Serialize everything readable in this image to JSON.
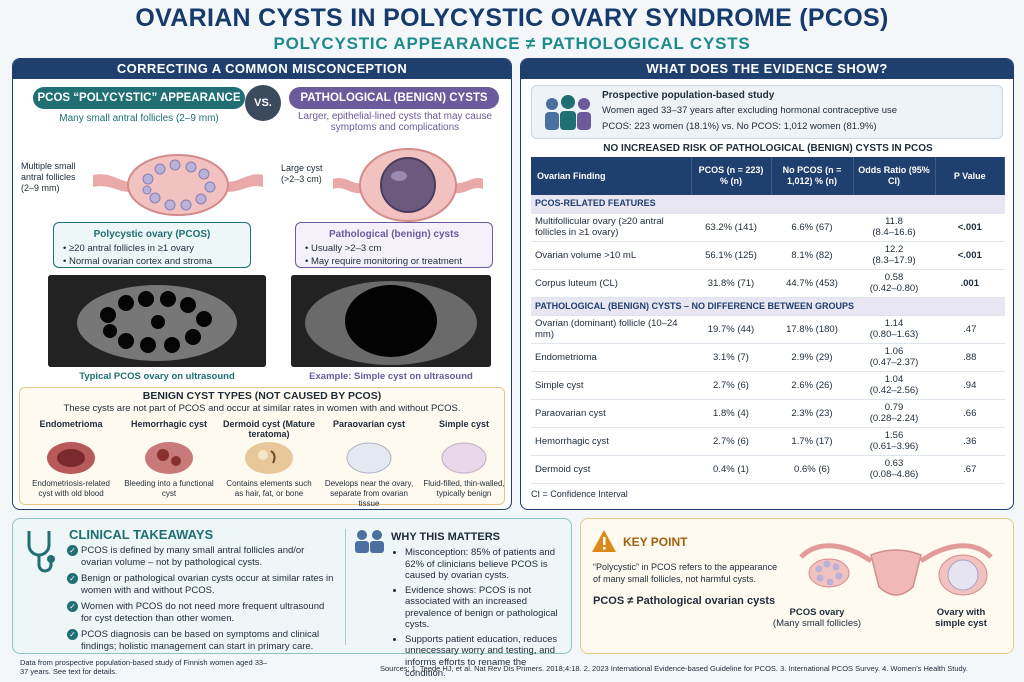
{
  "title": "OVARIAN CYSTS IN POLYCYSTIC OVARY SYNDROME (PCOS)",
  "subtitle": "POLYCYSTIC APPEARANCE ≠ PATHOLOGICAL CYSTS",
  "left": {
    "header": "CORRECTING A COMMON MISCONCEPTION",
    "pcos_pill": "PCOS “POLYCYSTIC” APPEARANCE",
    "vs": "VS.",
    "path_pill": "PATHOLOGICAL (BENIGN) CYSTS",
    "pcos_note": "Many small antral follicles (2–9 mm)",
    "path_note": "Larger, epithelial-lined cysts that may cause symptoms and complications",
    "pcos_label": "Multiple small antral follicles (2–9 mm)",
    "path_label": "Large cyst (>2–3 cm)",
    "pcos_box": {
      "title": "Polycystic ovary (PCOS)",
      "items": [
        "≥20 antral follicles in ≥1 ovary",
        "Normal ovarian cortex and stroma"
      ]
    },
    "path_box": {
      "title": "Pathological (benign) cysts",
      "items": [
        "Usually >2–3 cm",
        "May require monitoring or treatment"
      ]
    },
    "pcos_us_caption": "Typical PCOS ovary on ultrasound",
    "path_us_caption": "Example: Simple cyst on ultrasound",
    "types_header": "BENIGN CYST TYPES (NOT CAUSED BY PCOS)",
    "types_sub": "These cysts are not part of PCOS and occur at similar rates in women with and without PCOS.",
    "types": [
      {
        "name": "Endometrioma",
        "desc": "Endometriosis-related cyst with old blood"
      },
      {
        "name": "Hemorrhagic cyst",
        "desc": "Bleeding into a functional cyst"
      },
      {
        "name": "Dermoid cyst (Mature teratoma)",
        "desc": "Contains elements such as hair, fat, or bone"
      },
      {
        "name": "Paraovarian cyst",
        "desc": "Develops near the ovary, separate from ovarian tissue"
      },
      {
        "name": "Simple cyst",
        "desc": "Fluid-filled, thin-walled, typically benign"
      }
    ]
  },
  "right": {
    "header": "WHAT DOES THE EVIDENCE SHOW?",
    "study_title": "Prospective population-based study",
    "study_line1": "Women aged 33–37 years after excluding hormonal contraceptive use",
    "study_line2": "PCOS: 223 women (18.1%) vs. No PCOS: 1,012 women (81.9%)",
    "table_title": "NO INCREASED RISK OF PATHOLOGICAL (BENIGN) CYSTS IN PCOS",
    "cols": [
      "Ovarian Finding",
      "PCOS (n = 223) % (n)",
      "No PCOS (n = 1,012) % (n)",
      "Odds Ratio (95% CI)",
      "P Value"
    ],
    "sec1": "PCOS-RELATED FEATURES",
    "rows1": [
      {
        "f": "Multifollicular ovary (≥20 antral follicles in ≥1 ovary)",
        "a": "63.2% (141)",
        "b": "6.6% (67)",
        "or": "11.8",
        "ci": "(8.4–16.6)",
        "p": "<.001"
      },
      {
        "f": "Ovarian volume >10 mL",
        "a": "56.1% (125)",
        "b": "8.1% (82)",
        "or": "12.2",
        "ci": "(8.3–17.9)",
        "p": "<.001"
      },
      {
        "f": "Corpus luteum (CL)",
        "a": "31.8% (71)",
        "b": "44.7% (453)",
        "or": "0.58",
        "ci": "(0.42–0.80)",
        "p": ".001"
      }
    ],
    "sec2": "PATHOLOGICAL (BENIGN) CYSTS – NO DIFFERENCE BETWEEN GROUPS",
    "rows2": [
      {
        "f": "Ovarian (dominant) follicle (10–24 mm)",
        "a": "19.7% (44)",
        "b": "17.8% (180)",
        "or": "1.14",
        "ci": "(0.80–1.63)",
        "p": ".47"
      },
      {
        "f": "Endometrioma",
        "a": "3.1% (7)",
        "b": "2.9% (29)",
        "or": "1.06",
        "ci": "(0.47–2.37)",
        "p": ".88"
      },
      {
        "f": "Simple cyst",
        "a": "2.7% (6)",
        "b": "2.6% (26)",
        "or": "1.04",
        "ci": "(0.42–2.56)",
        "p": ".94"
      },
      {
        "f": "Paraovarian cyst",
        "a": "1.8% (4)",
        "b": "2.3% (23)",
        "or": "0.79",
        "ci": "(0.28–2.24)",
        "p": ".66"
      },
      {
        "f": "Hemorrhagic cyst",
        "a": "2.7% (6)",
        "b": "1.7% (17)",
        "or": "1.56",
        "ci": "(0.61–3.96)",
        "p": ".36"
      },
      {
        "f": "Dermoid cyst",
        "a": "0.4% (1)",
        "b": "0.6% (6)",
        "or": "0.63",
        "ci": "(0.08–4.86)",
        "p": ".67"
      }
    ],
    "ci_note": "CI = Confidence Interval"
  },
  "takeaways": {
    "title": "CLINICAL TAKEAWAYS",
    "items": [
      "PCOS is defined by many small antral follicles and/or ovarian volume – not by pathological cysts.",
      "Benign or pathological ovarian cysts occur at similar rates in women with and without PCOS.",
      "Women with PCOS do not need more frequent ultrasound for cyst detection than other women.",
      "PCOS diagnosis can be based on symptoms and clinical findings; holistic management can start in primary care."
    ]
  },
  "why": {
    "title": "WHY THIS MATTERS",
    "items": [
      "Misconception: 85% of patients and 62% of clinicians believe PCOS is caused by ovarian cysts.",
      "Evidence shows: PCOS is not associated with an increased prevalence of benign or pathological cysts.",
      "Supports patient education, reduces unnecessary worry and testing, and informs efforts to rename the condition."
    ]
  },
  "key": {
    "title": "KEY POINT",
    "text": "“Polycystic” in PCOS refers to the appearance of many small follicles, not harmful cysts.",
    "formula": "PCOS ≠ Pathological ovarian cysts",
    "label1": "PCOS ovary",
    "label1b": "(Many small follicles)",
    "label2": "Ovary with simple cyst"
  },
  "foot_left": "Data from prospective population-based study of Finnish women aged 33–37 years. See text for details.",
  "sources": "Sources: 1. Teede HJ, et al. Nat Rev Dis Primers. 2018;4:18. 2. 2023 International Evidence-based Guideline for PCOS. 3. International PCOS Survey. 4. Women’s Health Study."
}
